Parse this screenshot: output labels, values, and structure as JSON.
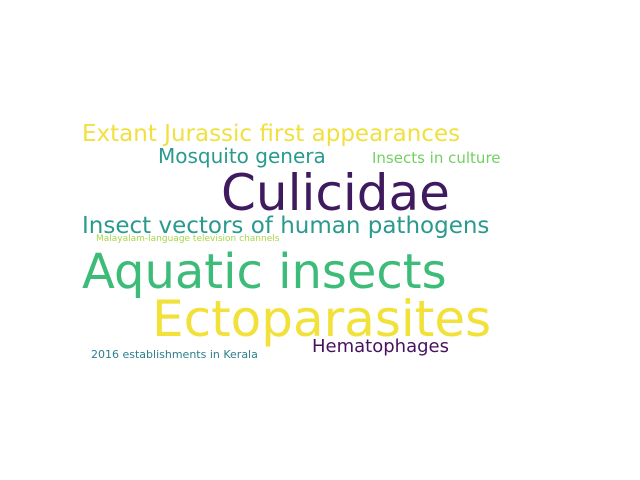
{
  "words": {
    "culicidae": {
      "text": "Culicidae",
      "color": "#3f1a5e"
    },
    "aquatic": {
      "text": "Aquatic insects",
      "color": "#3dbb78"
    },
    "ecto": {
      "text": "Ectoparasites",
      "color": "#f2e13a"
    },
    "jurassic": {
      "text": "Extant Jurassic first appearances",
      "color": "#f0e040"
    },
    "mosquito": {
      "text": "Mosquito genera",
      "color": "#2a9a8e"
    },
    "culture": {
      "text": "Insects in culture",
      "color": "#74cf62"
    },
    "vectors": {
      "text": "Insect vectors of human pathogens",
      "color": "#2a9a8e"
    },
    "malayalam": {
      "text": "Malayalam-language television channels",
      "color": "#a7d64a"
    },
    "hemato": {
      "text": "Hematophages",
      "color": "#46125f"
    },
    "kerala": {
      "text": "2016 establishments in Kerala",
      "color": "#2c7f8c"
    }
  }
}
